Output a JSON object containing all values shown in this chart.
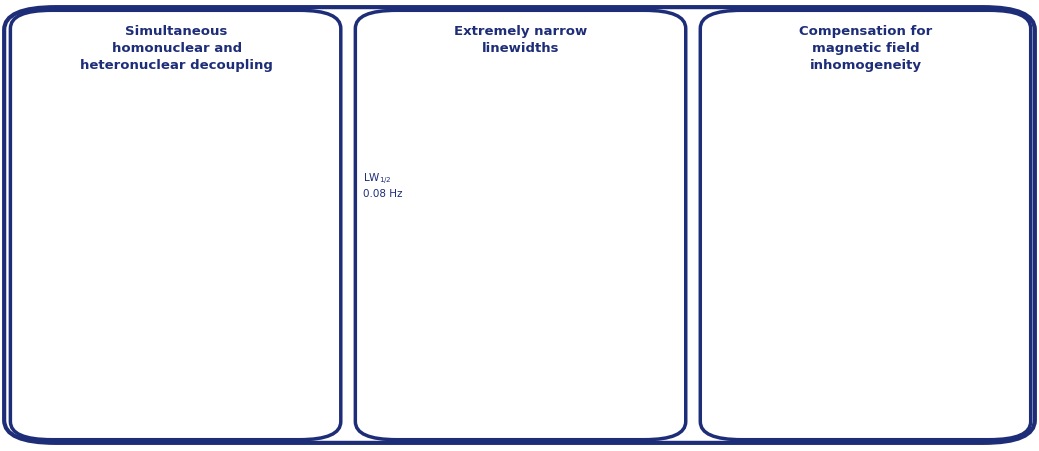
{
  "bg_color": "#ffffff",
  "border_color": "#1e2d78",
  "orange_color": "#e07820",
  "dark_blue": "#1e2d78",
  "green_fill": "#c5e8a0",
  "panel1_title": "Simultaneous\nhomonuclear and\nheteronuclear decoupling",
  "panel2_title": "Extremely narrow\nlinewidths",
  "panel3_title": "Compensation for\nmagnetic field\ninhomogeneity"
}
